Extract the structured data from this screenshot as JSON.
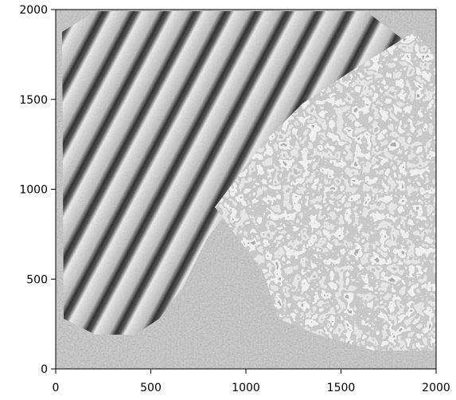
{
  "chart_data": {
    "type": "image",
    "xlim": [
      0,
      2000
    ],
    "ylim": [
      0,
      2000
    ],
    "xticks": [
      0,
      500,
      1000,
      1500,
      2000
    ],
    "yticks": [
      0,
      500,
      1000,
      1500,
      2000
    ]
  }
}
